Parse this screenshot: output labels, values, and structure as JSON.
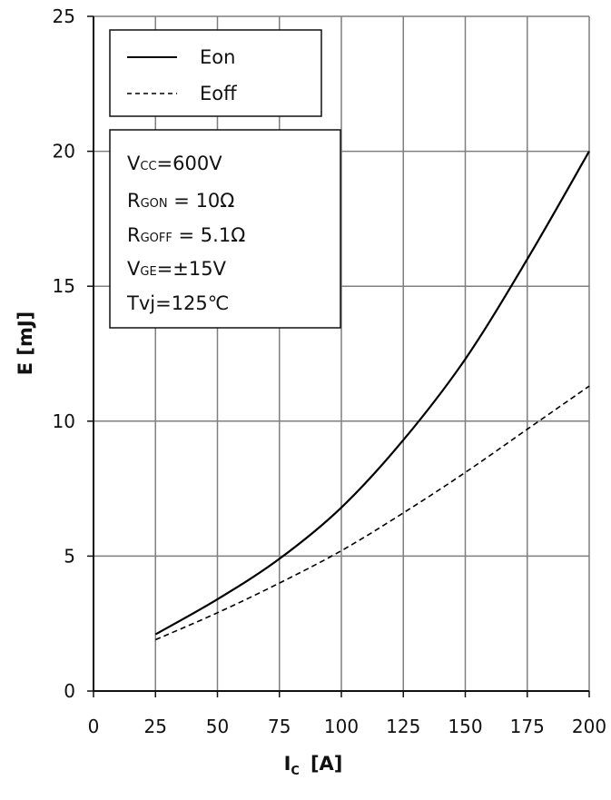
{
  "chart_data": {
    "type": "line",
    "title": "",
    "xlabel": "I",
    "xlabel_sub": "C",
    "xlabel_unit": "[A]",
    "ylabel": "E  [mJ]",
    "xlim": [
      0,
      200
    ],
    "ylim": [
      0,
      25
    ],
    "xticks": [
      "0",
      "25",
      "50",
      "75",
      "100",
      "125",
      "150",
      "175",
      "200"
    ],
    "yticks": [
      "0",
      "5",
      "10",
      "15",
      "20",
      "25"
    ],
    "grid": true,
    "legend_position": "top-left",
    "series": [
      {
        "name": "Eon",
        "style": "solid",
        "color": "#000000",
        "x": [
          25,
          50,
          75,
          100,
          125,
          150,
          175,
          200
        ],
        "y": [
          2.1,
          3.4,
          4.9,
          6.8,
          9.3,
          12.3,
          16.0,
          20.0
        ]
      },
      {
        "name": "Eoff",
        "style": "dashed",
        "color": "#000000",
        "x": [
          25,
          50,
          75,
          100,
          125,
          150,
          175,
          200
        ],
        "y": [
          1.9,
          2.9,
          4.0,
          5.2,
          6.6,
          8.1,
          9.7,
          11.3
        ]
      }
    ],
    "conditions": [
      {
        "main": "V",
        "sub": "CC",
        "rest": "=600V"
      },
      {
        "main": "R",
        "sub": "GON",
        "rest": " = 10Ω"
      },
      {
        "main": "R",
        "sub": "GOFF",
        "rest": " = 5.1Ω"
      },
      {
        "main": "V",
        "sub": "GE",
        "rest": "=±15V"
      },
      {
        "main": "Tvj",
        "sub": "",
        "rest": "=125℃"
      }
    ]
  }
}
